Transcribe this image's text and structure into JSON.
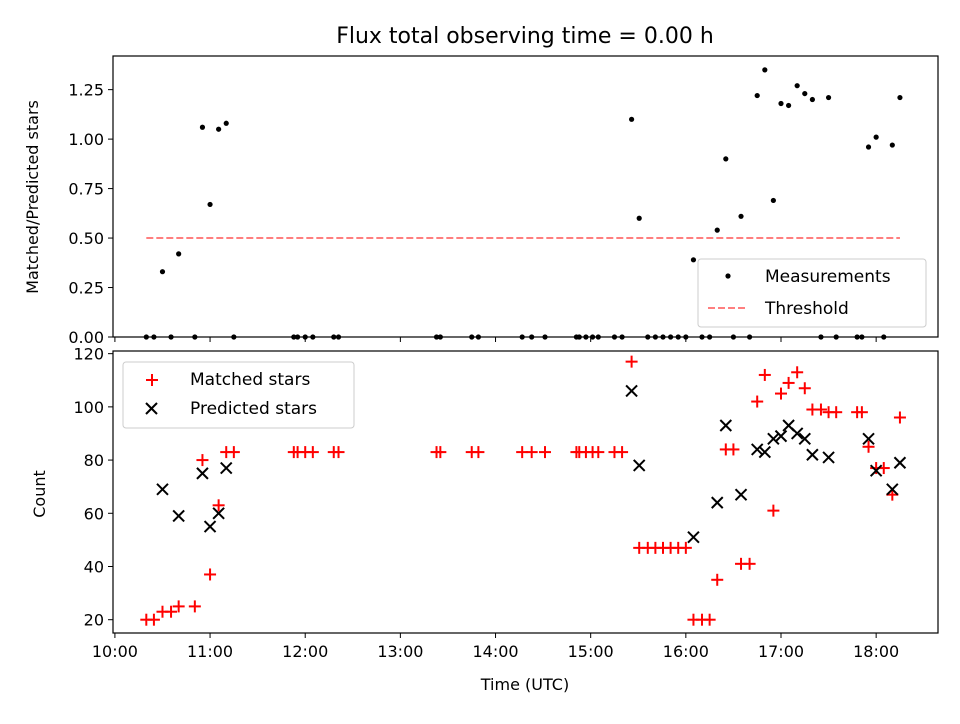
{
  "chart_data": [
    {
      "type": "scatter",
      "title": "Flux total observing time = 0.00 h",
      "xlabel": "",
      "ylabel": "Matched/Predicted stars",
      "xlim": [
        9.98,
        18.65
      ],
      "ylim": [
        0,
        1.42
      ],
      "yticks": [
        0,
        0.25,
        0.5,
        0.75,
        1.0,
        1.25
      ],
      "ytick_labels": [
        "0.00",
        "0.25",
        "0.50",
        "0.75",
        "1.00",
        "1.25"
      ],
      "legend_position": "bottom-right",
      "series": [
        {
          "name": "Measurements",
          "marker": "dot",
          "color": "#000000",
          "x": [
            10.33,
            10.41,
            10.5,
            10.59,
            10.67,
            10.84,
            10.92,
            11.0,
            11.09,
            11.17,
            11.25,
            11.88,
            11.92,
            12.0,
            12.08,
            12.3,
            12.35,
            13.38,
            13.42,
            13.75,
            13.82,
            14.28,
            14.38,
            14.52,
            14.85,
            14.88,
            14.95,
            15.02,
            15.08,
            15.25,
            15.33,
            15.43,
            15.51,
            15.6,
            15.68,
            15.76,
            15.84,
            15.92,
            16.0,
            16.08,
            16.17,
            16.25,
            16.33,
            16.42,
            16.5,
            16.58,
            16.67,
            16.75,
            16.83,
            16.92,
            17.0,
            17.08,
            17.17,
            17.25,
            17.33,
            17.42,
            17.5,
            17.58,
            17.8,
            17.85,
            17.92,
            18.0,
            18.08,
            18.17,
            18.25
          ],
          "y": [
            0.0,
            0.0,
            0.33,
            0.0,
            0.42,
            0.0,
            1.06,
            0.67,
            1.05,
            1.08,
            0.0,
            0.0,
            0.0,
            0.0,
            0.0,
            0.0,
            0.0,
            0.0,
            0.0,
            0.0,
            0.0,
            0.0,
            0.0,
            0.0,
            0.0,
            0.0,
            0.0,
            0.0,
            0.0,
            0.0,
            0.0,
            1.1,
            0.6,
            0.0,
            0.0,
            0.0,
            0.0,
            0.0,
            0.0,
            0.39,
            0.0,
            0.0,
            0.54,
            0.9,
            0.0,
            0.61,
            0.0,
            1.22,
            1.35,
            0.69,
            1.18,
            1.17,
            1.27,
            1.23,
            1.2,
            0.0,
            1.21,
            0.0,
            0.0,
            0.0,
            0.96,
            1.01,
            0.0,
            0.97,
            1.21
          ]
        },
        {
          "name": "Threshold",
          "marker": "dashed-line",
          "color": "#ff7f7f",
          "x": [
            10.33,
            18.25
          ],
          "y": [
            0.5,
            0.5
          ]
        }
      ]
    },
    {
      "type": "scatter",
      "title": "",
      "xlabel": "Time (UTC)",
      "ylabel": "Count",
      "xlim": [
        9.98,
        18.65
      ],
      "ylim": [
        15,
        121
      ],
      "yticks": [
        20,
        40,
        60,
        80,
        100,
        120
      ],
      "ytick_labels": [
        "20",
        "40",
        "60",
        "80",
        "100",
        "120"
      ],
      "xticks": [
        10,
        11,
        12,
        13,
        14,
        15,
        16,
        17,
        18
      ],
      "xtick_labels": [
        "10:00",
        "11:00",
        "12:00",
        "13:00",
        "14:00",
        "15:00",
        "16:00",
        "17:00",
        "18:00"
      ],
      "legend_position": "top-left",
      "series": [
        {
          "name": "Matched stars",
          "marker": "plus",
          "color": "#ff0000",
          "x": [
            10.33,
            10.41,
            10.5,
            10.59,
            10.67,
            10.84,
            10.92,
            11.0,
            11.09,
            11.17,
            11.25,
            11.88,
            11.92,
            12.0,
            12.08,
            12.3,
            12.35,
            13.38,
            13.42,
            13.75,
            13.82,
            14.28,
            14.38,
            14.52,
            14.85,
            14.88,
            14.95,
            15.02,
            15.08,
            15.25,
            15.33,
            15.43,
            15.51,
            15.6,
            15.68,
            15.76,
            15.84,
            15.92,
            16.0,
            16.08,
            16.17,
            16.25,
            16.33,
            16.42,
            16.5,
            16.58,
            16.67,
            16.75,
            16.83,
            16.92,
            17.0,
            17.08,
            17.17,
            17.25,
            17.33,
            17.42,
            17.5,
            17.58,
            17.8,
            17.85,
            17.92,
            18.0,
            18.08,
            18.17,
            18.25
          ],
          "y": [
            20,
            20,
            23,
            23,
            25,
            25,
            80,
            37,
            63,
            83,
            83,
            83,
            83,
            83,
            83,
            83,
            83,
            83,
            83,
            83,
            83,
            83,
            83,
            83,
            83,
            83,
            83,
            83,
            83,
            83,
            83,
            117,
            47,
            47,
            47,
            47,
            47,
            47,
            47,
            20,
            20,
            20,
            35,
            84,
            84,
            41,
            41,
            102,
            112,
            61,
            105,
            109,
            113,
            107,
            99,
            99,
            98,
            98,
            98,
            98,
            85,
            77,
            77,
            67,
            96
          ]
        },
        {
          "name": "Predicted stars",
          "marker": "x",
          "color": "#000000",
          "x": [
            10.5,
            10.67,
            10.92,
            11.0,
            11.09,
            11.17,
            15.43,
            15.51,
            16.08,
            16.33,
            16.42,
            16.58,
            16.75,
            16.83,
            16.92,
            17.0,
            17.08,
            17.17,
            17.25,
            17.33,
            17.5,
            17.92,
            18.0,
            18.17,
            18.25
          ],
          "y": [
            69,
            59,
            75,
            55,
            60,
            77,
            106,
            78,
            51,
            64,
            93,
            67,
            84,
            83,
            88,
            89,
            93,
            90,
            88,
            82,
            81,
            88,
            76,
            69,
            79
          ]
        }
      ]
    }
  ]
}
